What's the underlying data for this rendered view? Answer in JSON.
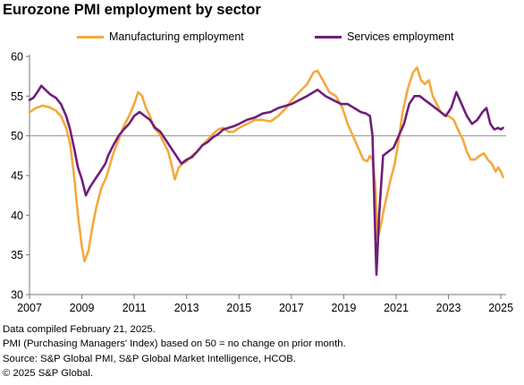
{
  "chart_data": {
    "type": "line",
    "title": "Eurozone PMI employment by sector",
    "xlabel": "",
    "ylabel": "",
    "xlim": [
      2007,
      2025.2
    ],
    "ylim": [
      30,
      60
    ],
    "x_ticks": [
      "2007",
      "2009",
      "2011",
      "2013",
      "2015",
      "2017",
      "2019",
      "2021",
      "2023",
      "2025"
    ],
    "y_ticks": [
      "30",
      "35",
      "40",
      "45",
      "50",
      "55",
      "60"
    ],
    "reference_line": 50,
    "legend_position": "top",
    "grid": false,
    "series": [
      {
        "name": "Manufacturing employment",
        "color": "#F4A93C",
        "points": [
          [
            2007.0,
            53.0
          ],
          [
            2007.25,
            53.5
          ],
          [
            2007.5,
            53.8
          ],
          [
            2007.75,
            53.6
          ],
          [
            2008.0,
            53.2
          ],
          [
            2008.2,
            52.5
          ],
          [
            2008.4,
            51.0
          ],
          [
            2008.55,
            49.0
          ],
          [
            2008.7,
            45.0
          ],
          [
            2008.85,
            40.0
          ],
          [
            2009.0,
            36.0
          ],
          [
            2009.1,
            34.2
          ],
          [
            2009.25,
            35.5
          ],
          [
            2009.4,
            38.5
          ],
          [
            2009.55,
            41.0
          ],
          [
            2009.75,
            43.5
          ],
          [
            2009.9,
            44.5
          ],
          [
            2010.0,
            45.5
          ],
          [
            2010.2,
            47.8
          ],
          [
            2010.4,
            49.5
          ],
          [
            2010.6,
            51.2
          ],
          [
            2010.8,
            52.5
          ],
          [
            2011.0,
            54.0
          ],
          [
            2011.15,
            55.5
          ],
          [
            2011.3,
            55.0
          ],
          [
            2011.45,
            53.5
          ],
          [
            2011.6,
            52.5
          ],
          [
            2011.75,
            51.0
          ],
          [
            2011.9,
            50.5
          ],
          [
            2012.0,
            50.0
          ],
          [
            2012.15,
            49.0
          ],
          [
            2012.3,
            48.0
          ],
          [
            2012.45,
            46.0
          ],
          [
            2012.55,
            44.5
          ],
          [
            2012.7,
            46.0
          ],
          [
            2012.85,
            46.5
          ],
          [
            2013.0,
            46.8
          ],
          [
            2013.2,
            47.5
          ],
          [
            2013.4,
            48.0
          ],
          [
            2013.6,
            48.8
          ],
          [
            2013.8,
            49.5
          ],
          [
            2014.0,
            50.2
          ],
          [
            2014.2,
            50.8
          ],
          [
            2014.4,
            51.0
          ],
          [
            2014.6,
            50.5
          ],
          [
            2014.8,
            50.5
          ],
          [
            2015.0,
            51.0
          ],
          [
            2015.3,
            51.5
          ],
          [
            2015.6,
            52.0
          ],
          [
            2015.9,
            52.0
          ],
          [
            2016.2,
            51.8
          ],
          [
            2016.5,
            52.5
          ],
          [
            2016.8,
            53.5
          ],
          [
            2017.0,
            54.5
          ],
          [
            2017.3,
            55.5
          ],
          [
            2017.6,
            56.5
          ],
          [
            2017.85,
            58.0
          ],
          [
            2018.0,
            58.2
          ],
          [
            2018.2,
            57.0
          ],
          [
            2018.45,
            55.5
          ],
          [
            2018.7,
            55.0
          ],
          [
            2018.95,
            53.5
          ],
          [
            2019.15,
            51.5
          ],
          [
            2019.35,
            50.0
          ],
          [
            2019.55,
            48.5
          ],
          [
            2019.75,
            47.0
          ],
          [
            2019.9,
            46.8
          ],
          [
            2020.0,
            47.5
          ],
          [
            2020.1,
            47.0
          ],
          [
            2020.2,
            44.0
          ],
          [
            2020.3,
            37.0
          ],
          [
            2020.4,
            38.5
          ],
          [
            2020.55,
            41.0
          ],
          [
            2020.75,
            44.0
          ],
          [
            2020.95,
            46.5
          ],
          [
            2021.1,
            49.5
          ],
          [
            2021.25,
            53.0
          ],
          [
            2021.45,
            56.0
          ],
          [
            2021.65,
            58.0
          ],
          [
            2021.8,
            58.6
          ],
          [
            2021.95,
            57.0
          ],
          [
            2022.1,
            56.5
          ],
          [
            2022.25,
            57.0
          ],
          [
            2022.4,
            55.0
          ],
          [
            2022.55,
            54.0
          ],
          [
            2022.7,
            53.0
          ],
          [
            2022.85,
            52.5
          ],
          [
            2023.0,
            52.5
          ],
          [
            2023.2,
            52.0
          ],
          [
            2023.4,
            50.5
          ],
          [
            2023.55,
            49.5
          ],
          [
            2023.7,
            48.0
          ],
          [
            2023.85,
            47.0
          ],
          [
            2024.0,
            47.0
          ],
          [
            2024.2,
            47.5
          ],
          [
            2024.35,
            47.8
          ],
          [
            2024.5,
            47.0
          ],
          [
            2024.65,
            46.5
          ],
          [
            2024.8,
            45.5
          ],
          [
            2024.9,
            46.0
          ],
          [
            2025.0,
            45.5
          ],
          [
            2025.08,
            44.8
          ]
        ]
      },
      {
        "name": "Services employment",
        "color": "#6F1E7A",
        "points": [
          [
            2007.0,
            54.5
          ],
          [
            2007.15,
            54.8
          ],
          [
            2007.3,
            55.5
          ],
          [
            2007.45,
            56.3
          ],
          [
            2007.6,
            55.8
          ],
          [
            2007.8,
            55.2
          ],
          [
            2008.0,
            54.8
          ],
          [
            2008.2,
            54.0
          ],
          [
            2008.4,
            52.5
          ],
          [
            2008.55,
            50.8
          ],
          [
            2008.7,
            48.5
          ],
          [
            2008.85,
            46.0
          ],
          [
            2009.0,
            44.5
          ],
          [
            2009.15,
            42.5
          ],
          [
            2009.3,
            43.5
          ],
          [
            2009.5,
            44.5
          ],
          [
            2009.7,
            45.5
          ],
          [
            2009.9,
            46.5
          ],
          [
            2010.0,
            47.5
          ],
          [
            2010.2,
            48.8
          ],
          [
            2010.4,
            50.0
          ],
          [
            2010.6,
            50.8
          ],
          [
            2010.8,
            51.5
          ],
          [
            2011.0,
            52.5
          ],
          [
            2011.2,
            53.0
          ],
          [
            2011.4,
            52.5
          ],
          [
            2011.6,
            52.0
          ],
          [
            2011.8,
            51.0
          ],
          [
            2012.0,
            50.5
          ],
          [
            2012.2,
            49.5
          ],
          [
            2012.4,
            48.5
          ],
          [
            2012.6,
            47.5
          ],
          [
            2012.8,
            46.5
          ],
          [
            2013.0,
            47.0
          ],
          [
            2013.2,
            47.3
          ],
          [
            2013.4,
            48.0
          ],
          [
            2013.6,
            48.8
          ],
          [
            2013.8,
            49.2
          ],
          [
            2014.0,
            49.8
          ],
          [
            2014.2,
            50.2
          ],
          [
            2014.4,
            50.8
          ],
          [
            2014.6,
            51.0
          ],
          [
            2014.8,
            51.2
          ],
          [
            2015.0,
            51.5
          ],
          [
            2015.3,
            52.0
          ],
          [
            2015.6,
            52.3
          ],
          [
            2015.9,
            52.8
          ],
          [
            2016.2,
            53.0
          ],
          [
            2016.5,
            53.5
          ],
          [
            2016.8,
            53.8
          ],
          [
            2017.0,
            54.0
          ],
          [
            2017.3,
            54.5
          ],
          [
            2017.6,
            55.0
          ],
          [
            2017.85,
            55.5
          ],
          [
            2018.0,
            55.8
          ],
          [
            2018.3,
            55.0
          ],
          [
            2018.6,
            54.5
          ],
          [
            2018.9,
            54.0
          ],
          [
            2019.15,
            54.0
          ],
          [
            2019.4,
            53.5
          ],
          [
            2019.65,
            53.0
          ],
          [
            2019.85,
            52.8
          ],
          [
            2020.0,
            52.5
          ],
          [
            2020.1,
            50.0
          ],
          [
            2020.18,
            40.0
          ],
          [
            2020.25,
            32.5
          ],
          [
            2020.35,
            40.0
          ],
          [
            2020.5,
            47.5
          ],
          [
            2020.7,
            48.0
          ],
          [
            2020.9,
            48.5
          ],
          [
            2021.1,
            50.0
          ],
          [
            2021.3,
            51.5
          ],
          [
            2021.5,
            54.0
          ],
          [
            2021.7,
            55.0
          ],
          [
            2021.9,
            55.0
          ],
          [
            2022.1,
            54.5
          ],
          [
            2022.3,
            54.0
          ],
          [
            2022.5,
            53.5
          ],
          [
            2022.7,
            53.0
          ],
          [
            2022.9,
            52.5
          ],
          [
            2023.1,
            53.5
          ],
          [
            2023.3,
            55.5
          ],
          [
            2023.5,
            54.0
          ],
          [
            2023.7,
            52.5
          ],
          [
            2023.9,
            51.5
          ],
          [
            2024.1,
            52.0
          ],
          [
            2024.3,
            53.0
          ],
          [
            2024.45,
            53.5
          ],
          [
            2024.6,
            51.5
          ],
          [
            2024.75,
            50.8
          ],
          [
            2024.9,
            51.0
          ],
          [
            2025.0,
            50.8
          ],
          [
            2025.08,
            51.0
          ]
        ]
      }
    ]
  },
  "notes": [
    "Data compiled February 21, 2025.",
    "PMI (Purchasing Managers' Index) based on 50 = no change on prior month.",
    "Source: S&P Global PMI, S&P Global Market Intelligence, HCOB.",
    "© 2025 S&P Global."
  ]
}
